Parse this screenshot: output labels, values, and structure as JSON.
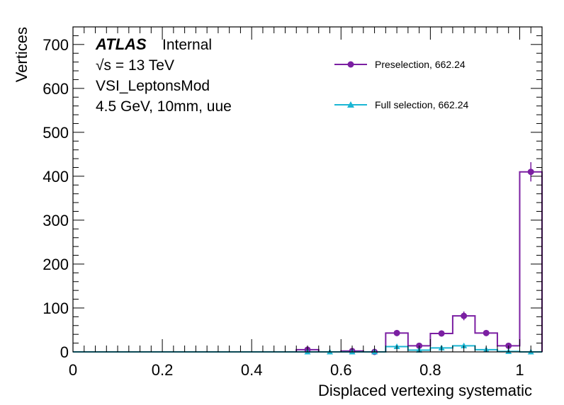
{
  "chart_data": {
    "type": "histogram",
    "xlabel": "Displaced vertexing systematic",
    "ylabel": "Vertices",
    "xlim": [
      0,
      1.05
    ],
    "ylim": [
      0,
      740
    ],
    "x_ticks": [
      0,
      0.2,
      0.4,
      0.6,
      0.8,
      1
    ],
    "x_tick_labels": [
      "0",
      "0.2",
      "0.4",
      "0.6",
      "0.8",
      "1"
    ],
    "y_ticks": [
      0,
      100,
      200,
      300,
      400,
      500,
      600,
      700
    ],
    "y_tick_labels": [
      "0",
      "100",
      "200",
      "300",
      "400",
      "500",
      "600",
      "700"
    ],
    "bin_width": 0.05,
    "bin_edges": [
      0,
      0.05,
      0.1,
      0.15,
      0.2,
      0.25,
      0.3,
      0.35,
      0.4,
      0.45,
      0.5,
      0.55,
      0.6,
      0.65,
      0.7,
      0.75,
      0.8,
      0.85,
      0.9,
      0.95,
      1.0,
      1.05
    ],
    "series": [
      {
        "name": "Preselection, 662.24",
        "color": "#7b1fa2",
        "marker": "circle",
        "values": [
          0,
          0,
          0,
          0,
          0,
          0,
          0,
          0,
          0,
          0,
          5,
          0,
          2,
          0,
          43,
          14,
          42,
          82,
          43,
          14,
          410
        ],
        "errors": [
          0,
          0,
          0,
          0,
          0,
          0,
          0,
          0,
          0,
          0,
          2,
          0,
          1.5,
          0,
          7,
          4,
          7,
          10,
          7,
          4,
          22
        ]
      },
      {
        "name": "Full selection, 662.24",
        "color": "#1bb6d4",
        "marker": "triangle",
        "values": [
          0,
          0,
          0,
          0,
          0,
          0,
          0,
          0,
          0,
          0,
          0,
          0,
          0,
          0,
          12,
          4,
          9,
          14,
          5,
          1,
          0
        ],
        "errors": [
          0,
          0,
          0,
          0,
          0,
          0,
          0,
          0,
          0,
          0,
          0,
          0,
          0,
          0,
          3,
          2,
          3,
          4,
          2,
          1,
          0
        ]
      }
    ],
    "legend_position": "top-right"
  },
  "annotations": {
    "atlas": "ATLAS",
    "status": "Internal",
    "sqrt": "√s",
    "energy": " = 13 TeV",
    "selection": "VSI_LeptonsMod",
    "params": "4.5 GeV, 10mm, uue"
  }
}
